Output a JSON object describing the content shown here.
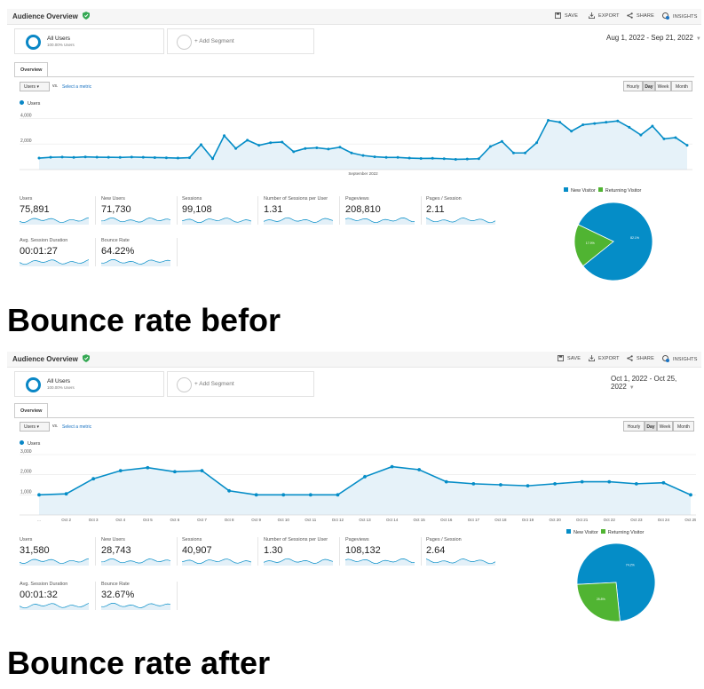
{
  "panels": [
    {
      "title": "Audience Overview",
      "toolbar": {
        "save": "SAVE",
        "export": "EXPORT",
        "share": "SHARE",
        "insights": "INSIGHTS"
      },
      "segment": {
        "name": "All Users",
        "sub": "100.00% Users",
        "add": "+ Add Segment"
      },
      "date_range": "Aug 1, 2022 - Sep 21, 2022",
      "tab": "Overview",
      "metric_select": "Users",
      "vs": "vs.",
      "select_metric": "Select a metric",
      "granularity": [
        "Hourly",
        "Day",
        "Week",
        "Month"
      ],
      "granularity_active": "Day",
      "legend": "Users",
      "chart_data": {
        "type": "line",
        "title": "",
        "series": [
          {
            "name": "Users",
            "values": [
              900,
              960,
              980,
              950,
              990,
              970,
              960,
              950,
              980,
              960,
              940,
              920,
              900,
              930,
              1950,
              850,
              2650,
              1650,
              2300,
              1900,
              2100,
              2150,
              1400,
              1650,
              1700,
              1600,
              1750,
              1300,
              1100,
              1000,
              950,
              950,
              900,
              870,
              880,
              850,
              800,
              820,
              850,
              1800,
              2200,
              1300,
              1300,
              2100,
              3850,
              3700,
              3000,
              3500,
              3600,
              3700,
              3800,
              3300,
              2700,
              3400,
              2400,
              2500,
              1900
            ]
          }
        ],
        "y_ticks": [
          "4,000",
          "2,000"
        ],
        "ylim": [
          0,
          4300
        ],
        "x_labels": [
          "September 2022"
        ]
      },
      "metrics": [
        {
          "label": "Users",
          "value": "75,891"
        },
        {
          "label": "New Users",
          "value": "71,730"
        },
        {
          "label": "Sessions",
          "value": "99,108"
        },
        {
          "label": "Number of Sessions per User",
          "value": "1.31"
        },
        {
          "label": "Pageviews",
          "value": "208,810"
        },
        {
          "label": "Pages / Session",
          "value": "2.11"
        },
        {
          "label": "Avg. Session Duration",
          "value": "00:01:27"
        },
        {
          "label": "Bounce Rate",
          "value": "64.22%"
        }
      ],
      "pie": {
        "chart_data": {
          "type": "pie",
          "series": [
            {
              "name": "New Visitor",
              "value": 82.1
            },
            {
              "name": "Returning Visitor",
              "value": 17.9
            }
          ]
        },
        "labels": [
          "82.1%",
          "17.9%"
        ],
        "colors": [
          "#058dc7",
          "#50b432"
        ]
      },
      "caption": "Bounce rate befor"
    },
    {
      "title": "Audience Overview",
      "toolbar": {
        "save": "SAVE",
        "export": "EXPORT",
        "share": "SHARE",
        "insights": "INSIGHTS"
      },
      "segment": {
        "name": "All Users",
        "sub": "100.00% Users",
        "add": "+ Add Segment"
      },
      "date_range": "Oct 1, 2022 - Oct 25, 2022",
      "tab": "Overview",
      "metric_select": "Users",
      "vs": "vs.",
      "select_metric": "Select a metric",
      "granularity": [
        "Hourly",
        "Day",
        "Week",
        "Month"
      ],
      "granularity_active": "Day",
      "legend": "Users",
      "chart_data": {
        "type": "line",
        "title": "",
        "series": [
          {
            "name": "Users",
            "values": [
              1000,
              1050,
              1800,
              2200,
              2350,
              2150,
              2200,
              1200,
              1000,
              1000,
              1000,
              1000,
              1900,
              2400,
              2250,
              1650,
              1550,
              1500,
              1450,
              1550,
              1650,
              1650,
              1550,
              1600,
              1000
            ]
          }
        ],
        "y_ticks": [
          "3,000",
          "2,000",
          "1,000"
        ],
        "ylim": [
          0,
          3000
        ],
        "x_labels": [
          "...",
          "Oct 2",
          "Oct 3",
          "Oct 4",
          "Oct 5",
          "Oct 6",
          "Oct 7",
          "Oct 8",
          "Oct 9",
          "Oct 10",
          "Oct 11",
          "Oct 12",
          "Oct 13",
          "Oct 14",
          "Oct 15",
          "Oct 16",
          "Oct 17",
          "Oct 18",
          "Oct 19",
          "Oct 20",
          "Oct 21",
          "Oct 22",
          "Oct 23",
          "Oct 24",
          "Oct 25"
        ]
      },
      "metrics": [
        {
          "label": "Users",
          "value": "31,580"
        },
        {
          "label": "New Users",
          "value": "28,743"
        },
        {
          "label": "Sessions",
          "value": "40,907"
        },
        {
          "label": "Number of Sessions per User",
          "value": "1.30"
        },
        {
          "label": "Pageviews",
          "value": "108,132"
        },
        {
          "label": "Pages / Session",
          "value": "2.64"
        },
        {
          "label": "Avg. Session Duration",
          "value": "00:01:32"
        },
        {
          "label": "Bounce Rate",
          "value": "32.67%"
        }
      ],
      "pie": {
        "chart_data": {
          "type": "pie",
          "series": [
            {
              "name": "New Visitor",
              "value": 74.2
            },
            {
              "name": "Returning Visitor",
              "value": 25.8
            }
          ]
        },
        "labels": [
          "74.2%",
          "25.8%"
        ],
        "colors": [
          "#058dc7",
          "#50b432"
        ]
      },
      "caption": "Bounce rate after"
    }
  ]
}
